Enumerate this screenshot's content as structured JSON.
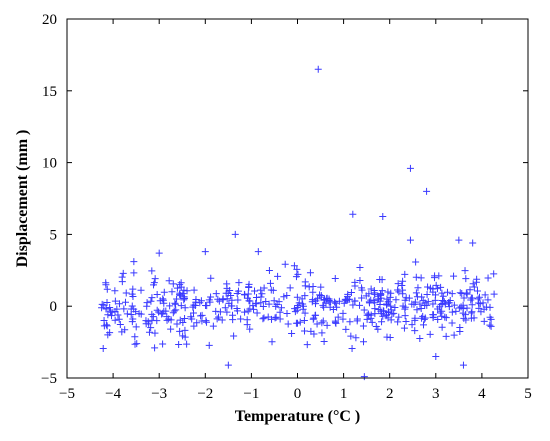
{
  "chart_data": {
    "type": "scatter",
    "xlabel": "Temperature (°C )",
    "ylabel": "Displacement (mm )",
    "xlim": [
      -5,
      5
    ],
    "ylim": [
      -5,
      20
    ],
    "xticks": [
      "−5",
      "−4",
      "−3",
      "−2",
      "−1",
      "0",
      "1",
      "2",
      "3",
      "4",
      "5"
    ],
    "yticks": [
      "−5",
      "0",
      "5",
      "10",
      "15",
      "20"
    ],
    "grid": false,
    "legend": "none",
    "marker": "plus",
    "point_color": "#3a3aff",
    "outliers": [
      {
        "x": 0.45,
        "y": 16.5
      },
      {
        "x": 2.45,
        "y": 9.6
      },
      {
        "x": 2.8,
        "y": 8.0
      },
      {
        "x": 1.2,
        "y": 6.4
      },
      {
        "x": 1.85,
        "y": 6.25
      },
      {
        "x": -1.35,
        "y": 5.0
      },
      {
        "x": 2.45,
        "y": 4.6
      },
      {
        "x": 3.5,
        "y": 4.6
      },
      {
        "x": 3.8,
        "y": 4.4
      },
      {
        "x": -2.0,
        "y": 3.8
      },
      {
        "x": -0.85,
        "y": 3.8
      },
      {
        "x": -3.0,
        "y": 3.7
      },
      {
        "x": -3.55,
        "y": 3.1
      },
      {
        "x": 1.45,
        "y": -4.9
      },
      {
        "x": -1.5,
        "y": -4.1
      },
      {
        "x": 3.6,
        "y": -4.1
      },
      {
        "x": -3.1,
        "y": -2.9
      },
      {
        "x": 3.0,
        "y": -3.5
      }
    ],
    "bulk": {
      "x_range": [
        -4.25,
        4.3
      ],
      "y_center": 0,
      "y_spread": 1.1,
      "count": 560,
      "seed": 7
    }
  }
}
